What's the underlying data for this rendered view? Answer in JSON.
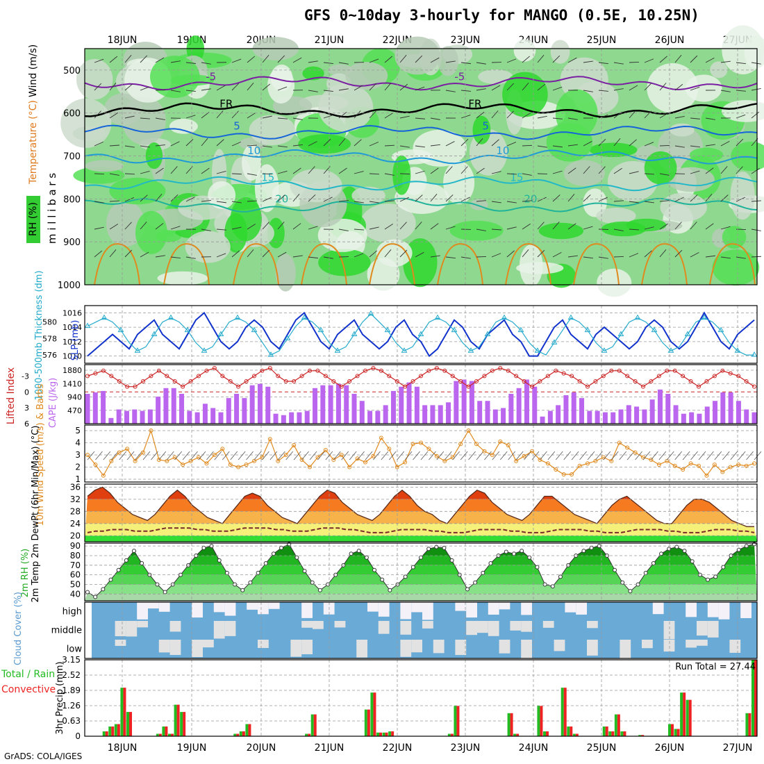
{
  "title": "GFS 0~10day 3-hourly for MANGO (0.5E, 10.25N)",
  "credit": "GrADS: COLA/IGES",
  "dates": [
    "18JUN",
    "19JUN",
    "20JUN",
    "21JUN",
    "22JUN",
    "23JUN",
    "24JUN",
    "25JUN",
    "26JUN",
    "27JUN"
  ],
  "colors": {
    "rh": "#33cc33",
    "rh_dark": "#00aa00",
    "temp": "#ff8c00",
    "slp": "#1133cc",
    "thick": "#22aacc",
    "lifted": "#cc2222",
    "cape": "#bb66ee",
    "wind": "#e08a1e",
    "rain": "#22bb22",
    "conv": "#ee2222",
    "cloud": "#6aaad6",
    "cloud_clear": "#f4f2f8",
    "dewpt": "#7a2a2a",
    "run_total": "#000000"
  },
  "chart_data": [
    {
      "id": "upper_air",
      "type": "heatmap",
      "ylabel": "m i l l i b a r s",
      "legend": [
        "RH (%)",
        "Temperature (°C)",
        "Wind (m/s)"
      ],
      "y_ticks": [
        500,
        600,
        700,
        800,
        900,
        1000
      ],
      "ylim": [
        1000,
        450
      ],
      "temperature_contours": [
        {
          "label": "-5",
          "level": 530
        },
        {
          "label": "FR",
          "level": 593
        },
        {
          "label": "5",
          "level": 645
        },
        {
          "label": "10",
          "level": 702
        },
        {
          "label": "15",
          "level": 765
        },
        {
          "label": "20",
          "level": 815
        }
      ]
    },
    {
      "id": "slp_thickness",
      "type": "line",
      "left_label": "1000-500mb Thickness (dm)",
      "right_label": "SLP (mb)",
      "left_ticks": [
        576,
        578,
        580
      ],
      "right_ticks": [
        1010,
        1012,
        1014,
        1016
      ],
      "series": [
        {
          "name": "SLP",
          "axis": "right",
          "values": [
            1010,
            1011,
            1012,
            1013,
            1012,
            1011,
            1013,
            1014,
            1015,
            1013,
            1012,
            1011,
            1013,
            1015,
            1016,
            1014,
            1012,
            1011,
            1012,
            1014,
            1015,
            1014,
            1012,
            1011,
            1013,
            1015,
            1016,
            1014,
            1012,
            1011,
            1013,
            1014,
            1015,
            1013,
            1012,
            1011,
            1012,
            1014,
            1015,
            1013,
            1012,
            1010,
            1011,
            1013,
            1015,
            1014,
            1012,
            1011,
            1013,
            1014,
            1015,
            1013,
            1012,
            1010,
            1010,
            1012,
            1014,
            1015,
            1013,
            1012,
            1011,
            1013,
            1014,
            1013,
            1012,
            1011,
            1012,
            1014,
            1015,
            1014,
            1012,
            1011,
            1012,
            1014,
            1016,
            1014,
            1012,
            1011,
            1013,
            1014,
            1015
          ]
        },
        {
          "name": "Thickness",
          "axis": "left",
          "values": [
            579.5,
            580,
            580.5,
            580,
            579,
            577.5,
            576.5,
            577,
            578.5,
            580,
            580.5,
            580,
            579,
            577.5,
            576.5,
            577,
            578.5,
            580,
            580.5,
            580,
            579,
            577.5,
            576,
            576.5,
            578,
            579.5,
            580.5,
            580,
            579,
            577.5,
            576.5,
            577,
            578.5,
            580,
            581,
            580,
            579,
            577.5,
            576.5,
            577,
            578.5,
            580,
            580.5,
            580,
            579,
            577.5,
            576.5,
            577,
            578.5,
            580,
            580.5,
            580,
            579,
            577.5,
            576.5,
            576,
            577.5,
            579,
            580.5,
            580,
            579,
            577.5,
            576.5,
            577,
            578.5,
            580,
            580.5,
            580,
            579,
            577.5,
            576.5,
            577,
            578.5,
            580,
            580.5,
            580,
            579,
            577.5,
            576.5,
            576,
            576
          ]
        }
      ]
    },
    {
      "id": "cape_li",
      "type": "bar",
      "left_label": "Lifted Index",
      "right_label": "CAPE (J/kg)",
      "li_ticks": [
        -3,
        0,
        3,
        6
      ],
      "cape_ticks": [
        470,
        940,
        1410,
        1880
      ],
      "series": [
        {
          "name": "CAPE",
          "values": [
            1050,
            1100,
            1150,
            200,
            500,
            450,
            500,
            450,
            500,
            950,
            1250,
            1250,
            1050,
            450,
            400,
            700,
            550,
            400,
            900,
            1050,
            900,
            1350,
            1400,
            1300,
            350,
            300,
            400,
            400,
            450,
            1250,
            1350,
            1350,
            1400,
            1350,
            1050,
            800,
            450,
            450,
            650,
            1150,
            1300,
            1450,
            1300,
            650,
            650,
            650,
            750,
            1500,
            1550,
            1500,
            800,
            800,
            500,
            550,
            1050,
            1250,
            1550,
            1300,
            250,
            450,
            650,
            1000,
            1100,
            900,
            450,
            450,
            400,
            400,
            500,
            650,
            600,
            500,
            850,
            1200,
            1050,
            650,
            350,
            400,
            350,
            600,
            800,
            1100,
            1100,
            800,
            500,
            400
          ]
        },
        {
          "name": "Lifted Index",
          "values": [
            -3,
            -3.5,
            -4,
            -3,
            -2,
            -1,
            -1,
            -2,
            -3,
            -4,
            -3,
            -2,
            -1,
            -2,
            -3,
            -4,
            -4.5,
            -3,
            -2,
            -1,
            -2,
            -3,
            -4,
            -4.5,
            -3,
            -2,
            -2,
            -3,
            -4,
            -4,
            -3,
            -2,
            -1,
            -2,
            -3,
            -4,
            -4.5,
            -4,
            -3,
            -2,
            -1,
            -2,
            -3,
            -4,
            -4.5,
            -4,
            -3,
            -2,
            -1,
            -2,
            -3,
            -4,
            -4.5,
            -4,
            -3,
            -2,
            -1,
            -2,
            -3,
            -4,
            -3.5,
            -3,
            -2,
            -1,
            -2,
            -3,
            -4,
            -4,
            -3,
            -2,
            -1,
            -2,
            -3,
            -4,
            -4,
            -3,
            -2,
            -1,
            -2,
            -3,
            -4,
            -3.5,
            -3,
            -2,
            -1
          ]
        }
      ]
    },
    {
      "id": "wind10m",
      "type": "line",
      "ylabel": "10m Wind Speed (m/s) & Barbs",
      "y_ticks": [
        1,
        2,
        3,
        4,
        5
      ],
      "series": [
        {
          "name": "10m Wind Speed",
          "values": [
            3,
            2.2,
            1.3,
            2.5,
            3.2,
            3.5,
            2.5,
            3.2,
            5,
            2.6,
            2.5,
            2.8,
            2.2,
            2.5,
            2.8,
            2.3,
            3,
            3.5,
            2.2,
            2,
            2.2,
            2.5,
            2.8,
            4.3,
            2.5,
            3,
            3.8,
            2.6,
            2,
            2.8,
            3.4,
            2.6,
            3,
            2,
            2.7,
            2.4,
            2.9,
            4.4,
            3.5,
            2,
            2.4,
            3.9,
            4,
            3.5,
            2.9,
            2.5,
            2.8,
            3.9,
            5,
            3.9,
            3.3,
            3,
            4.1,
            3.8,
            2.5,
            2.9,
            3.3,
            2.6,
            2.3,
            1.8,
            1.4,
            1.4,
            2.1,
            2.3,
            2.5,
            2.8,
            2.5,
            4,
            3.6,
            3.2,
            2.8,
            2.6,
            2.2,
            2.5,
            2.1,
            1.8,
            2.3,
            2.1,
            1.3,
            2.2,
            1.6,
            2,
            2.2,
            2.1,
            2.3
          ]
        }
      ]
    },
    {
      "id": "temp2m",
      "type": "area",
      "ylabel": "2m Temp 2m DewPt (6hr Min/Max) (°C)",
      "y_ticks": [
        20,
        24,
        28,
        32,
        36
      ],
      "series": [
        {
          "name": "2m Temp",
          "values": [
            33,
            35,
            36,
            34,
            31,
            29,
            27,
            26,
            25,
            27,
            30,
            33,
            35,
            33,
            30,
            28,
            26,
            25,
            24,
            27,
            30,
            33,
            34,
            33,
            30,
            28,
            26,
            25,
            24,
            27,
            30,
            33,
            35,
            34,
            31,
            29,
            27,
            26,
            25,
            27,
            30,
            33,
            35,
            33,
            30,
            28,
            27,
            25,
            24,
            27,
            30,
            33,
            35,
            34,
            31,
            29,
            27,
            26,
            25,
            27,
            30,
            33,
            33,
            31,
            29,
            27,
            26,
            25,
            24,
            27,
            30,
            32,
            33,
            31,
            29,
            27,
            25,
            24,
            24,
            27,
            30,
            32,
            32,
            31,
            29,
            27,
            25,
            24,
            23,
            23
          ]
        },
        {
          "name": "2m DewPt",
          "values": [
            21,
            21.5,
            21.5,
            22,
            22,
            22,
            21.5,
            21.5,
            21.5,
            22,
            22.5,
            22.5,
            22.5,
            22.5,
            22,
            22,
            21.5,
            21.5,
            21.5,
            22,
            22.5,
            22.5,
            22.5,
            22.5,
            22,
            22,
            21.5,
            21.5,
            21.5,
            22,
            22.5,
            22.5,
            22.5,
            22,
            22,
            21.5,
            21,
            21,
            21,
            21.5,
            22,
            22,
            22,
            22,
            21.5,
            21.5,
            21,
            21,
            21,
            21.5,
            22,
            22,
            22,
            22,
            21.5,
            21.5,
            21,
            21,
            21,
            21.5,
            22,
            22,
            22,
            22,
            21.5,
            21.5,
            21,
            21,
            21,
            21.5,
            22,
            22,
            22,
            22,
            21.5,
            21.5,
            21,
            21,
            21,
            21.5,
            22,
            22,
            22,
            21.5,
            21.5,
            21
          ]
        }
      ]
    },
    {
      "id": "rh2m",
      "type": "area",
      "ylabel": "2m RH (%)",
      "y_ticks": [
        40,
        50,
        60,
        70,
        80,
        90
      ],
      "series": [
        {
          "name": "2m RH",
          "values": [
            42,
            37,
            45,
            55,
            65,
            75,
            85,
            72,
            60,
            50,
            42,
            50,
            60,
            70,
            80,
            88,
            90,
            75,
            62,
            50,
            44,
            52,
            62,
            72,
            82,
            88,
            92,
            78,
            64,
            52,
            44,
            50,
            60,
            70,
            82,
            85,
            78,
            65,
            55,
            44,
            50,
            58,
            68,
            78,
            87,
            89,
            88,
            75,
            60,
            45,
            52,
            62,
            72,
            80,
            84,
            82,
            85,
            78,
            68,
            50,
            48,
            58,
            70,
            80,
            85,
            88,
            90,
            80,
            65,
            52,
            43,
            50,
            62,
            72,
            82,
            87,
            89,
            85,
            74,
            60,
            55,
            58,
            68,
            80,
            86,
            90,
            92
          ]
        }
      ]
    },
    {
      "id": "cloud",
      "type": "heatmap",
      "ylabel": "Cloud Cover (%)",
      "levels": [
        "high",
        "middle",
        "low"
      ]
    },
    {
      "id": "precip",
      "type": "bar",
      "ylabel": "3hr Precip (mm)",
      "legend": [
        "Total / Rain",
        "Convective"
      ],
      "y_ticks": [
        0,
        0.63,
        1.26,
        1.89,
        2.52,
        3.15
      ],
      "run_total_label": "Run Total = 27.44",
      "series": [
        {
          "name": "Total",
          "values": [
            0,
            0,
            0,
            0.2,
            0.4,
            0.5,
            2,
            1,
            0,
            0,
            0,
            0,
            0.1,
            0.4,
            0.1,
            1.3,
            1,
            0,
            0,
            0,
            0,
            0,
            0,
            0,
            0,
            0.1,
            0.2,
            0.5,
            0,
            0,
            0,
            0,
            0,
            0,
            0,
            0,
            0,
            0.1,
            0.9,
            0,
            0,
            0,
            0,
            0,
            0,
            0,
            0,
            1.1,
            1.8,
            0.15,
            0.15,
            0.2,
            0,
            0,
            0,
            0,
            0,
            0,
            0,
            0,
            0,
            0.1,
            1.25,
            0,
            0,
            0,
            0,
            0,
            0,
            0,
            0,
            0.95,
            0.1,
            0,
            0,
            0,
            1.25,
            0.2,
            0,
            0,
            2,
            0.4,
            0.1,
            0,
            0,
            0,
            0,
            0.4,
            0.2,
            0.9,
            0.2,
            0,
            0,
            0.05,
            0,
            0,
            0,
            0,
            0.5,
            0.3,
            1.8,
            1.5,
            0,
            0,
            0,
            0,
            0,
            0,
            0,
            0,
            0,
            0.95,
            3.15
          ]
        }
      ]
    }
  ]
}
